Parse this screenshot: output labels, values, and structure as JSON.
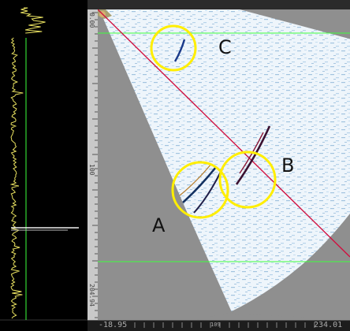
{
  "depth_ruler": {
    "labels": [
      "0.00",
      "100",
      "204.94"
    ]
  },
  "scan_ruler": {
    "start": "-18.95",
    "mid": "109",
    "end": "234.01"
  },
  "markers": [
    {
      "label": "A"
    },
    {
      "label": "B"
    },
    {
      "label": "C"
    }
  ],
  "colors": {
    "marker_circle": "#ffee00",
    "gate_line": "#3cff3c",
    "cursor_line": "#d01040",
    "a_scan_trace": "#e8e060"
  }
}
